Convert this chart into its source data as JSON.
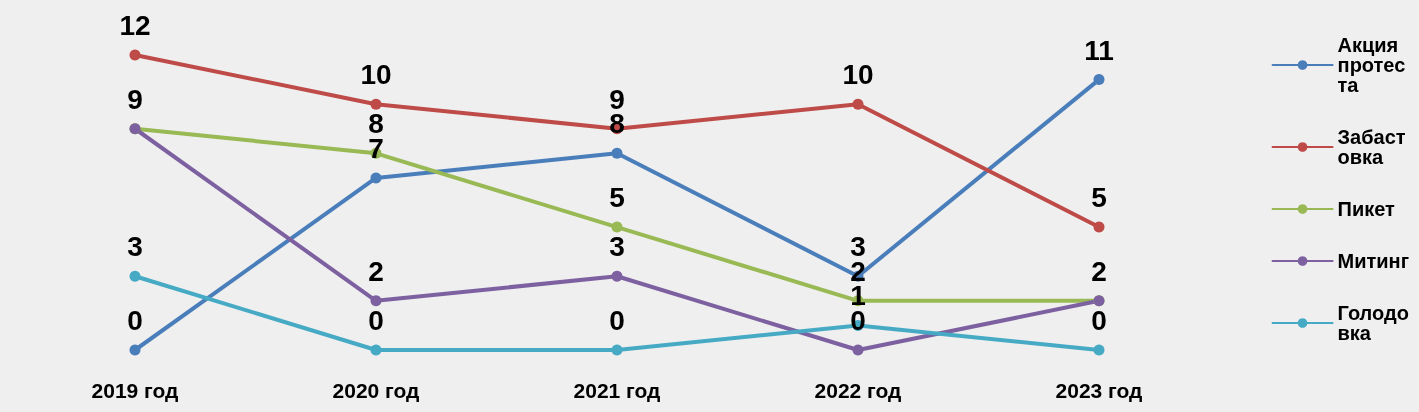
{
  "chart_data": {
    "type": "line",
    "categories": [
      "2019 год",
      "2020 год",
      "2021 год",
      "2022 год",
      "2023 год"
    ],
    "series": [
      {
        "name": "Акция протеста",
        "color": "#4a7ebb",
        "values": [
          0,
          7,
          8,
          3,
          11
        ],
        "value_labels": [
          "0",
          "7",
          "8",
          "3",
          "11"
        ]
      },
      {
        "name": "Забастовка",
        "color": "#be4b48",
        "values": [
          12,
          10,
          9,
          10,
          5
        ],
        "value_labels": [
          "12",
          "10",
          "9",
          "10",
          "5"
        ]
      },
      {
        "name": "Пикет",
        "color": "#98b954",
        "values": [
          9,
          8,
          5,
          2,
          2
        ],
        "value_labels": [
          "9",
          "8",
          "5",
          "2",
          "2"
        ]
      },
      {
        "name": "Митинг",
        "color": "#7d60a0",
        "values": [
          9,
          2,
          3,
          0,
          2
        ],
        "value_labels": [
          null,
          "2",
          "3",
          "0",
          null
        ]
      },
      {
        "name": "Голодовка",
        "color": "#46aac5",
        "values": [
          3,
          0,
          0,
          1,
          0
        ],
        "value_labels": [
          "3",
          "0",
          "0",
          "1",
          "0"
        ]
      }
    ],
    "tick_labels": "x",
    "marker": "circle",
    "line_style": "solid",
    "legend": "right",
    "grid": false
  }
}
